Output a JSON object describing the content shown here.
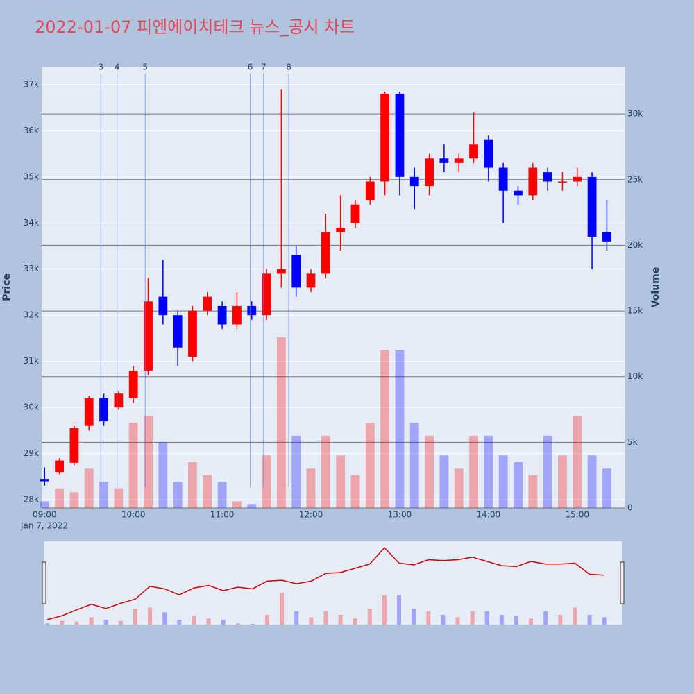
{
  "chart_data": {
    "type": "candlestick",
    "title": "2022-01-07 피엔에이치테크 뉴스_공시 차트",
    "y_title": "Price",
    "y2_title": "Volume",
    "x_date_label": "Jan 7, 2022",
    "x": [
      "09:00",
      "09:10",
      "09:20",
      "09:30",
      "09:40",
      "09:50",
      "10:00",
      "10:10",
      "10:20",
      "10:30",
      "10:40",
      "10:50",
      "11:00",
      "11:10",
      "11:20",
      "11:30",
      "11:40",
      "11:50",
      "12:00",
      "12:10",
      "12:20",
      "12:30",
      "12:40",
      "12:50",
      "13:00",
      "13:10",
      "13:20",
      "13:30",
      "13:40",
      "13:50",
      "14:00",
      "14:10",
      "14:20",
      "14:30",
      "14:40",
      "14:50",
      "15:00",
      "15:10",
      "15:20"
    ],
    "open": [
      28450,
      28600,
      28800,
      29600,
      30200,
      30000,
      30200,
      30800,
      32400,
      32000,
      31100,
      32100,
      32200,
      31800,
      32200,
      32000,
      32900,
      33300,
      32600,
      32900,
      33800,
      34000,
      34500,
      34900,
      36800,
      35000,
      34800,
      35400,
      35300,
      35400,
      35800,
      35200,
      34700,
      34600,
      35100,
      34900,
      34900,
      35000,
      33800
    ],
    "high": [
      28700,
      28900,
      29600,
      30250,
      30300,
      30350,
      30900,
      32800,
      33200,
      32100,
      32200,
      32500,
      32300,
      32500,
      32300,
      33000,
      36900,
      33500,
      33000,
      34200,
      34600,
      34500,
      35000,
      36850,
      36850,
      35200,
      35500,
      35700,
      35500,
      36400,
      35900,
      35300,
      34800,
      35300,
      35200,
      35100,
      35200,
      35100,
      34500
    ],
    "low": [
      28300,
      28550,
      28750,
      29500,
      29600,
      29950,
      30100,
      30700,
      31800,
      30900,
      31000,
      32000,
      31700,
      31700,
      31900,
      31900,
      32600,
      32400,
      32500,
      32800,
      33400,
      33900,
      34400,
      34600,
      34600,
      34300,
      34600,
      35100,
      35100,
      35300,
      34900,
      34000,
      34400,
      34500,
      34700,
      34700,
      34800,
      33000,
      33400
    ],
    "close": [
      28400,
      28850,
      29550,
      30200,
      29700,
      30300,
      30800,
      32300,
      32000,
      31300,
      32100,
      32400,
      31800,
      32200,
      32000,
      32900,
      33000,
      32600,
      32900,
      33800,
      33900,
      34400,
      34900,
      36800,
      35000,
      34800,
      35400,
      35300,
      35400,
      35700,
      35200,
      34700,
      34600,
      35200,
      34900,
      34900,
      35000,
      33700,
      33600
    ],
    "volume": [
      500,
      1500,
      1200,
      3000,
      2000,
      1500,
      6500,
      7000,
      5000,
      2000,
      3500,
      2500,
      2000,
      500,
      300,
      4000,
      13000,
      5500,
      3000,
      5500,
      4000,
      2500,
      6500,
      12000,
      12000,
      6500,
      5500,
      4000,
      3000,
      5500,
      5500,
      4000,
      3500,
      2500,
      5500,
      4000,
      7000,
      4000,
      3000
    ],
    "increasing_color": "#ff0000",
    "decreasing_color": "#0000ff",
    "xlim": [
      "08:58",
      "15:32"
    ],
    "xticks": [
      "09:00",
      "10:00",
      "11:00",
      "12:00",
      "13:00",
      "14:00",
      "15:00"
    ],
    "ylim": [
      27820,
      37390
    ],
    "yticks": [
      {
        "value": 28000,
        "label": "28k"
      },
      {
        "value": 29000,
        "label": "29k"
      },
      {
        "value": 30000,
        "label": "30k"
      },
      {
        "value": 31000,
        "label": "31k"
      },
      {
        "value": 32000,
        "label": "32k"
      },
      {
        "value": 33000,
        "label": "33k"
      },
      {
        "value": 34000,
        "label": "34k"
      },
      {
        "value": 35000,
        "label": "35k"
      },
      {
        "value": 36000,
        "label": "36k"
      },
      {
        "value": 37000,
        "label": "37k"
      }
    ],
    "y2lim": [
      0,
      33600
    ],
    "y2ticks": [
      0,
      {
        "value": 5000,
        "label": "5k"
      },
      {
        "value": 10000,
        "label": "10k"
      },
      {
        "value": 15000,
        "label": "15k"
      },
      {
        "value": 20000,
        "label": "20k"
      },
      {
        "value": 25000,
        "label": "25k"
      },
      {
        "value": 30000,
        "label": "30k"
      }
    ],
    "news": [
      {
        "label": "3",
        "time": "09:38"
      },
      {
        "label": "4",
        "time": "09:49"
      },
      {
        "label": "5",
        "time": "10:08"
      },
      {
        "label": "6",
        "time": "11:19"
      },
      {
        "label": "7",
        "time": "11:28"
      },
      {
        "label": "8",
        "time": "11:45"
      }
    ],
    "grid": true
  }
}
